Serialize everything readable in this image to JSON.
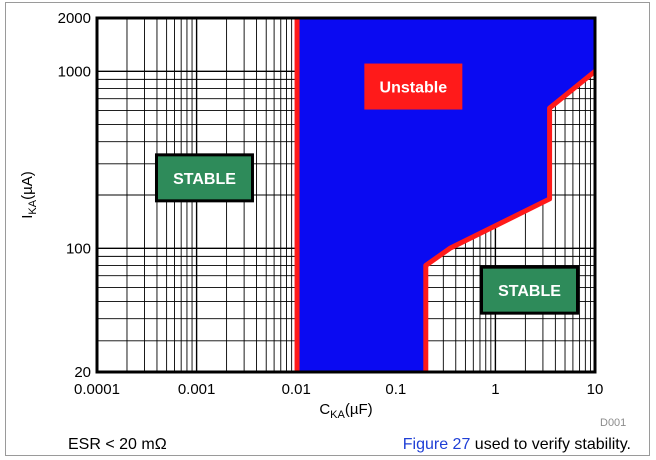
{
  "chart_data": {
    "type": "area",
    "x_scale": "log",
    "y_scale": "log",
    "xlim": [
      0.0001,
      10
    ],
    "ylim": [
      20,
      2000
    ],
    "grid": true,
    "xlabel": {
      "main": "C",
      "sub": "KA",
      "unit": "(µF)"
    },
    "ylabel": {
      "main": "I",
      "sub": "KA",
      "unit": "(µA)"
    },
    "x_ticks": [
      {
        "value": 0.0001,
        "label": "0.0001"
      },
      {
        "value": 0.001,
        "label": "0.001"
      },
      {
        "value": 0.01,
        "label": "0.01"
      },
      {
        "value": 0.1,
        "label": "0.1"
      },
      {
        "value": 1,
        "label": "1"
      },
      {
        "value": 10,
        "label": "10"
      }
    ],
    "y_ticks": [
      {
        "value": 20,
        "label": "20"
      },
      {
        "value": 100,
        "label": "100"
      },
      {
        "value": 1000,
        "label": "1000"
      },
      {
        "value": 2000,
        "label": "2000"
      }
    ],
    "unstable_region": {
      "label": "Unstable",
      "fill": "#0a0af2",
      "boundary_color": "#ff1a1a",
      "boundary": [
        {
          "x": 0.0102,
          "y": 20
        },
        {
          "x": 0.0102,
          "y": 2000
        },
        {
          "x": 10,
          "y": 2000
        },
        {
          "x": 10,
          "y": 1000
        },
        {
          "x": 3.5,
          "y": 620
        },
        {
          "x": 3.5,
          "y": 190
        },
        {
          "x": 0.35,
          "y": 100
        },
        {
          "x": 0.2,
          "y": 80
        },
        {
          "x": 0.2,
          "y": 20
        }
      ],
      "label_at": {
        "x": 0.15,
        "y": 820
      }
    },
    "stable_labels": [
      {
        "text": "STABLE",
        "x": 0.0012,
        "y": 250,
        "fill": "#2e8b5a"
      },
      {
        "text": "STABLE",
        "x": 2.2,
        "y": 58,
        "fill": "#2e8b5a"
      }
    ]
  },
  "figure_code": "D001",
  "captions": {
    "esr": "ESR < 20 mΩ",
    "figure_link": "Figure 27",
    "verify_text": " used to verify stability."
  }
}
